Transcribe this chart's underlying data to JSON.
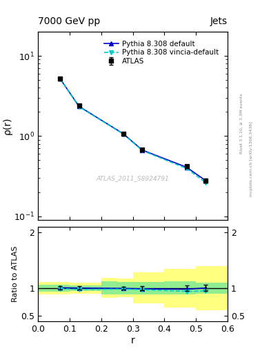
{
  "title_left": "7000 GeV pp",
  "title_right": "Jets",
  "right_label_top": "Rivet 3.1.10, ≥ 3.3M events",
  "right_label_bot": "mcplots.cern.ch [arXiv:1306.3436]",
  "watermark": "ATLAS_2011_S8924791",
  "ylabel_main": "ρ(r)",
  "ylabel_ratio": "Ratio to ATLAS",
  "xlabel": "r",
  "x_data": [
    0.07,
    0.13,
    0.27,
    0.33,
    0.47,
    0.53
  ],
  "atlas_y": [
    5.2,
    2.4,
    1.08,
    0.68,
    0.42,
    0.28
  ],
  "atlas_yerr": [
    0.15,
    0.07,
    0.03,
    0.025,
    0.02,
    0.015
  ],
  "pythia_default_y": [
    5.2,
    2.35,
    1.07,
    0.67,
    0.41,
    0.28
  ],
  "pythia_vincia_y": [
    5.15,
    2.32,
    1.06,
    0.66,
    0.395,
    0.265
  ],
  "ratio_pythia_default": [
    1.005,
    1.0,
    0.992,
    0.985,
    0.978,
    1.0
  ],
  "ratio_pythia_vincia": [
    0.99,
    0.975,
    0.98,
    0.97,
    0.94,
    0.946
  ],
  "band_x_edges": [
    0.0,
    0.1,
    0.2,
    0.25,
    0.3,
    0.4,
    0.5,
    0.6
  ],
  "green_band_lo": [
    0.94,
    0.95,
    0.88,
    0.89,
    0.89,
    0.88,
    0.9,
    0.9
  ],
  "green_band_hi": [
    1.06,
    1.05,
    1.12,
    1.11,
    1.11,
    1.12,
    1.1,
    1.1
  ],
  "yellow_band_lo": [
    0.89,
    0.9,
    0.82,
    0.83,
    0.72,
    0.65,
    0.6,
    0.6
  ],
  "yellow_band_hi": [
    1.11,
    1.1,
    1.18,
    1.17,
    1.28,
    1.35,
    1.4,
    1.4
  ],
  "ylim_main": [
    0.09,
    20
  ],
  "ylim_ratio": [
    0.4,
    2.1
  ],
  "yticks_ratio": [
    0.5,
    1.0,
    2.0
  ],
  "color_atlas": "#000000",
  "color_pythia_default": "#0000cc",
  "color_pythia_vincia": "#00cccc",
  "color_green": "#90ee90",
  "color_yellow": "#ffff80"
}
